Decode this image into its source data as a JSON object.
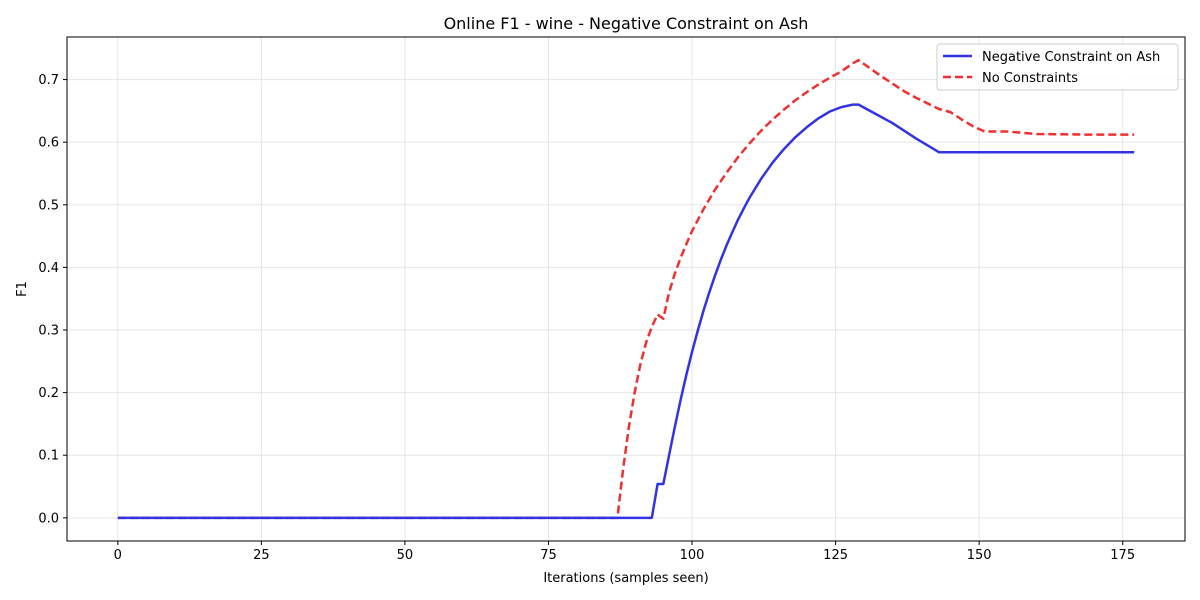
{
  "chart_data": {
    "type": "line",
    "title": "Online F1 - wine - Negative Constraint on Ash",
    "xlabel": "Iterations (samples seen)",
    "ylabel": "F1",
    "xlim": [
      -8.85,
      185.85
    ],
    "ylim": [
      -0.037,
      0.768
    ],
    "xticks": [
      0,
      25,
      50,
      75,
      100,
      125,
      150,
      175
    ],
    "xtick_labels": [
      "0",
      "25",
      "50",
      "75",
      "100",
      "125",
      "150",
      "175"
    ],
    "yticks": [
      0.0,
      0.1,
      0.2,
      0.3,
      0.4,
      0.5,
      0.6,
      0.7
    ],
    "ytick_labels": [
      "0.0",
      "0.1",
      "0.2",
      "0.3",
      "0.4",
      "0.5",
      "0.6",
      "0.7"
    ],
    "grid": true,
    "legend_position": "top-right",
    "series": [
      {
        "name": "Negative Constraint on Ash",
        "color": "#3333e6",
        "style": "solid",
        "x": [
          0,
          93,
          94,
          95,
          96,
          97,
          98,
          99,
          100,
          101,
          102,
          103,
          104,
          105,
          106,
          107,
          108,
          109,
          110,
          112,
          114,
          116,
          118,
          120,
          122,
          124,
          126,
          128,
          129,
          131,
          133,
          135,
          137,
          139,
          141,
          143,
          150,
          160,
          170,
          177
        ],
        "y": [
          0.0,
          0.0,
          0.054,
          0.054,
          0.1,
          0.145,
          0.188,
          0.228,
          0.265,
          0.299,
          0.331,
          0.36,
          0.387,
          0.412,
          0.435,
          0.456,
          0.476,
          0.494,
          0.511,
          0.541,
          0.567,
          0.589,
          0.608,
          0.624,
          0.638,
          0.649,
          0.656,
          0.66,
          0.66,
          0.65,
          0.64,
          0.63,
          0.618,
          0.606,
          0.595,
          0.584,
          0.584,
          0.584,
          0.584,
          0.584
        ]
      },
      {
        "name": "No Constraints",
        "color": "#f03030",
        "style": "dashed",
        "x": [
          0,
          87,
          88,
          89,
          90,
          91,
          92,
          93,
          94,
          95,
          96,
          97,
          98,
          99,
          100,
          102,
          104,
          106,
          108,
          110,
          112,
          114,
          116,
          118,
          120,
          122,
          124,
          126,
          128,
          129,
          131,
          133,
          135,
          137,
          139,
          141,
          143,
          145,
          147,
          149,
          151,
          155,
          160,
          170,
          177
        ],
        "y": [
          0.0,
          0.0,
          0.078,
          0.145,
          0.2,
          0.245,
          0.28,
          0.305,
          0.325,
          0.318,
          0.36,
          0.39,
          0.415,
          0.437,
          0.458,
          0.493,
          0.524,
          0.551,
          0.576,
          0.598,
          0.618,
          0.636,
          0.652,
          0.667,
          0.68,
          0.692,
          0.703,
          0.713,
          0.726,
          0.731,
          0.718,
          0.705,
          0.693,
          0.681,
          0.671,
          0.662,
          0.653,
          0.648,
          0.636,
          0.625,
          0.617,
          0.617,
          0.613,
          0.612,
          0.612
        ]
      }
    ]
  }
}
